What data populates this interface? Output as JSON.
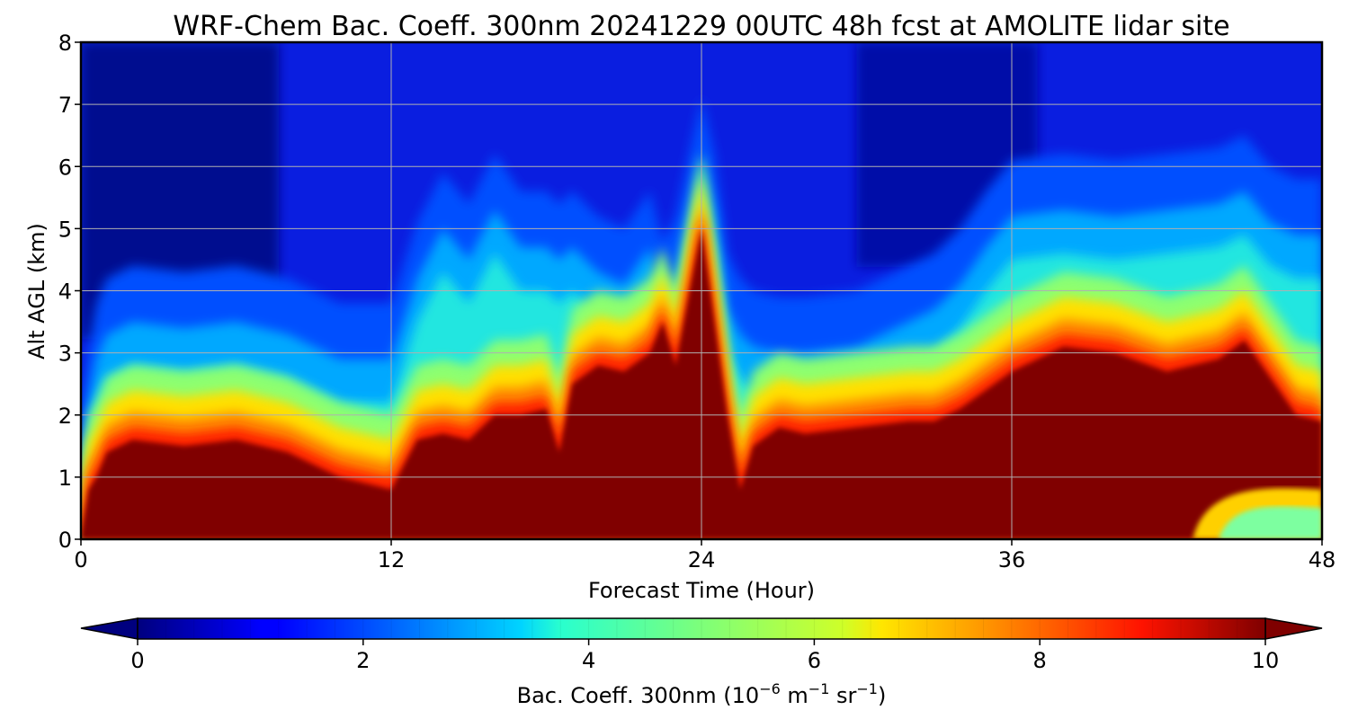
{
  "chart_data": {
    "type": "heatmap",
    "title": "WRF-Chem Bac. Coeff. 300nm  20241229 00UTC 48h fcst at AMOLITE lidar site",
    "xlabel": "Forecast Time (Hour)",
    "ylabel": "Alt AGL (km)",
    "x_ticks": [
      "0",
      "12",
      "24",
      "36",
      "48"
    ],
    "y_ticks": [
      "0",
      "1",
      "2",
      "3",
      "4",
      "5",
      "6",
      "7",
      "8"
    ],
    "xlim": [
      0,
      48
    ],
    "ylim": [
      0,
      8
    ],
    "grid": true,
    "colormap": "jet",
    "colorbar": {
      "label_main": "Bac. Coeff. 300nm  (10",
      "label_exp1": "−6",
      "label_mid": " m",
      "label_exp2": "−1",
      "label_mid2": " sr",
      "label_exp3": "−1",
      "label_end": ")",
      "ticks": [
        "0",
        "2",
        "4",
        "6",
        "8",
        "10"
      ],
      "range": [
        0,
        10
      ],
      "extend": "both"
    },
    "profile": {
      "description_hours": [
        0,
        0.3,
        0.6,
        1,
        2,
        4,
        6,
        8,
        10,
        12,
        13,
        14,
        15,
        16,
        17,
        18,
        18.5,
        19,
        20,
        21,
        22,
        22.5,
        23,
        24,
        24.5,
        25,
        25.5,
        26,
        27,
        28,
        30,
        32,
        33,
        34,
        35,
        36,
        38,
        40,
        42,
        44,
        45,
        46,
        47,
        48
      ],
      "top_km": [
        0.05,
        0.8,
        1.0,
        1.4,
        1.6,
        1.5,
        1.6,
        1.4,
        1.0,
        0.8,
        1.6,
        1.7,
        1.6,
        2.0,
        2.0,
        2.1,
        1.4,
        2.5,
        2.8,
        2.7,
        3.0,
        3.5,
        2.8,
        5.0,
        3.5,
        2.0,
        0.8,
        1.5,
        1.8,
        1.7,
        1.8,
        1.9,
        1.9,
        2.1,
        2.4,
        2.7,
        3.1,
        3.0,
        2.7,
        2.9,
        3.2,
        2.6,
        2.0,
        1.9
      ],
      "aerosol_top_km": [
        0.5,
        1.5,
        2.2,
        2.6,
        2.8,
        2.7,
        2.8,
        2.6,
        2.2,
        2.2,
        3.5,
        4.3,
        3.8,
        4.6,
        4.0,
        4.0,
        3.8,
        4.0,
        3.6,
        3.4,
        4.0,
        3.2,
        3.6,
        5.5,
        4.6,
        3.0,
        2.6,
        2.4,
        2.3,
        2.3,
        2.4,
        2.8,
        3.0,
        3.4,
        4.0,
        4.5,
        4.6,
        4.5,
        4.6,
        4.7,
        4.9,
        4.4,
        4.2,
        4.2
      ]
    }
  }
}
